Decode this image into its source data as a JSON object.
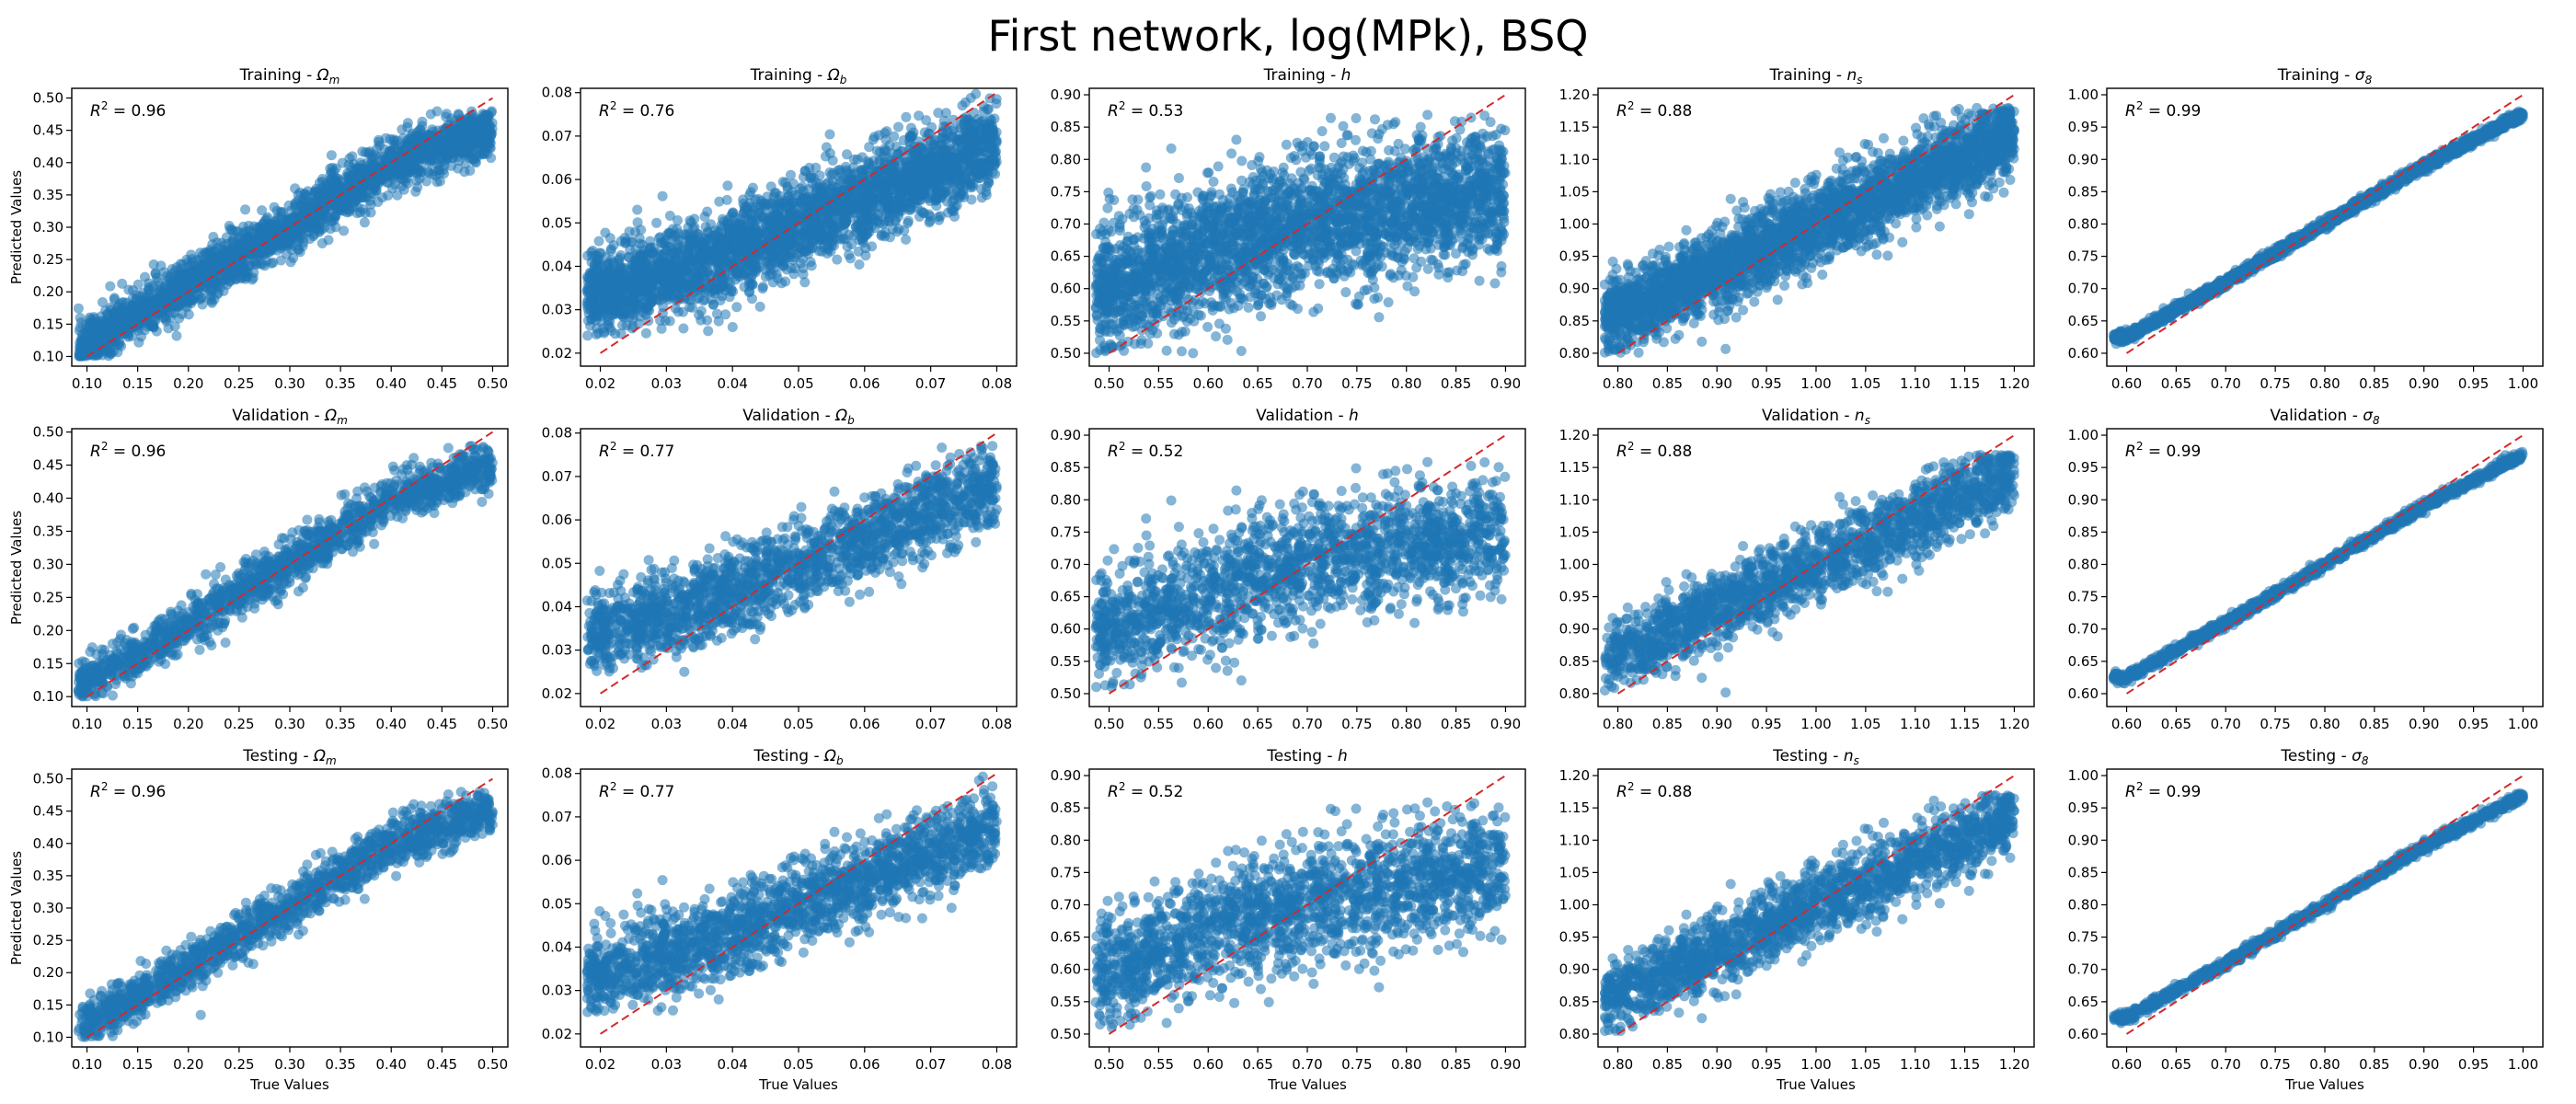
{
  "figure": {
    "title": "First network, log(MPk), BSQ"
  },
  "colors": {
    "points": "#1f77b4",
    "identity_line": "#d62728",
    "axes": "#000000",
    "background": "#ffffff"
  },
  "axis_labels": {
    "x": "True Values",
    "y": "Predicted Values"
  },
  "chart_data": [
    {
      "type": "scatter",
      "row": 0,
      "col": 0,
      "title_prefix": "Training - ",
      "param": "Ωm",
      "param_base": "Ω",
      "param_sub": "m",
      "r2_text": "= 0.96",
      "r2": 0.96,
      "xlim": [
        0.085,
        0.515
      ],
      "ylim": [
        0.085,
        0.515
      ],
      "xticks": [
        0.1,
        0.15,
        0.2,
        0.25,
        0.3,
        0.35,
        0.4,
        0.45,
        0.5
      ],
      "yticks": [
        0.1,
        0.15,
        0.2,
        0.25,
        0.3,
        0.35,
        0.4,
        0.45,
        0.5
      ],
      "trend": {
        "x": [
          0.1,
          0.2,
          0.3,
          0.4,
          0.5
        ],
        "y": [
          0.12,
          0.21,
          0.3,
          0.4,
          0.45
        ]
      },
      "spread": 0.02,
      "n_points": 2500,
      "y_clip": [
        0.1,
        0.48
      ]
    },
    {
      "type": "scatter",
      "row": 0,
      "col": 1,
      "title_prefix": "Training - ",
      "param": "Ωb",
      "param_base": "Ω",
      "param_sub": "b",
      "r2_text": "= 0.76",
      "r2": 0.76,
      "xlim": [
        0.017,
        0.083
      ],
      "ylim": [
        0.017,
        0.081
      ],
      "xticks": [
        0.02,
        0.03,
        0.04,
        0.05,
        0.06,
        0.07,
        0.08
      ],
      "yticks": [
        0.02,
        0.03,
        0.04,
        0.05,
        0.06,
        0.07,
        0.08
      ],
      "trend": {
        "x": [
          0.02,
          0.04,
          0.06,
          0.08
        ],
        "y": [
          0.034,
          0.043,
          0.056,
          0.068
        ]
      },
      "spread": 0.005,
      "n_points": 3000,
      "y_clip": [
        0.024,
        0.08
      ]
    },
    {
      "type": "scatter",
      "row": 0,
      "col": 2,
      "title_prefix": "Training - ",
      "param": "h",
      "param_base": "h",
      "param_sub": "",
      "r2_text": "= 0.53",
      "r2": 0.53,
      "xlim": [
        0.48,
        0.92
      ],
      "ylim": [
        0.48,
        0.91
      ],
      "xticks": [
        0.5,
        0.55,
        0.6,
        0.65,
        0.7,
        0.75,
        0.8,
        0.85,
        0.9
      ],
      "yticks": [
        0.5,
        0.55,
        0.6,
        0.65,
        0.7,
        0.75,
        0.8,
        0.85,
        0.9
      ],
      "trend": {
        "x": [
          0.5,
          0.6,
          0.7,
          0.8,
          0.9
        ],
        "y": [
          0.6,
          0.66,
          0.7,
          0.73,
          0.75
        ]
      },
      "spread": 0.05,
      "n_points": 3000,
      "y_clip": [
        0.5,
        0.87
      ]
    },
    {
      "type": "scatter",
      "row": 0,
      "col": 3,
      "title_prefix": "Training - ",
      "param": "ns",
      "param_base": "n",
      "param_sub": "s",
      "r2_text": "= 0.88",
      "r2": 0.88,
      "xlim": [
        0.78,
        1.22
      ],
      "ylim": [
        0.78,
        1.21
      ],
      "xticks": [
        0.8,
        0.85,
        0.9,
        0.95,
        1.0,
        1.05,
        1.1,
        1.15,
        1.2
      ],
      "yticks": [
        0.8,
        0.85,
        0.9,
        0.95,
        1.0,
        1.05,
        1.1,
        1.15,
        1.2
      ],
      "trend": {
        "x": [
          0.8,
          1.0,
          1.2
        ],
        "y": [
          0.86,
          1.0,
          1.14
        ]
      },
      "spread": 0.03,
      "n_points": 3000,
      "y_clip": [
        0.8,
        1.18
      ]
    },
    {
      "type": "scatter",
      "row": 0,
      "col": 4,
      "title_prefix": "Training - ",
      "param": "σ8",
      "param_base": "σ",
      "param_sub": "8",
      "r2_text": "= 0.99",
      "r2": 0.99,
      "xlim": [
        0.58,
        1.02
      ],
      "ylim": [
        0.58,
        1.01
      ],
      "xticks": [
        0.6,
        0.65,
        0.7,
        0.75,
        0.8,
        0.85,
        0.9,
        0.95,
        1.0
      ],
      "yticks": [
        0.6,
        0.65,
        0.7,
        0.75,
        0.8,
        0.85,
        0.9,
        0.95,
        1.0
      ],
      "trend": {
        "x": [
          0.6,
          0.7,
          0.8,
          0.9,
          1.0
        ],
        "y": [
          0.625,
          0.71,
          0.8,
          0.89,
          0.97
        ]
      },
      "spread": 0.004,
      "n_points": 2000,
      "y_clip": [
        0.61,
        0.975
      ]
    },
    {
      "type": "scatter",
      "row": 1,
      "col": 0,
      "title_prefix": "Validation - ",
      "param": "Ωm",
      "param_base": "Ω",
      "param_sub": "m",
      "r2_text": "= 0.96",
      "r2": 0.96,
      "xlim": [
        0.085,
        0.515
      ],
      "ylim": [
        0.085,
        0.505
      ],
      "xticks": [
        0.1,
        0.15,
        0.2,
        0.25,
        0.3,
        0.35,
        0.4,
        0.45,
        0.5
      ],
      "yticks": [
        0.1,
        0.15,
        0.2,
        0.25,
        0.3,
        0.35,
        0.4,
        0.45,
        0.5
      ],
      "trend": {
        "x": [
          0.1,
          0.2,
          0.3,
          0.4,
          0.5
        ],
        "y": [
          0.12,
          0.21,
          0.3,
          0.4,
          0.45
        ]
      },
      "spread": 0.018,
      "n_points": 1500,
      "y_clip": [
        0.1,
        0.48
      ]
    },
    {
      "type": "scatter",
      "row": 1,
      "col": 1,
      "title_prefix": "Validation - ",
      "param": "Ωb",
      "param_base": "Ω",
      "param_sub": "b",
      "r2_text": "= 0.77",
      "r2": 0.77,
      "xlim": [
        0.017,
        0.083
      ],
      "ylim": [
        0.017,
        0.081
      ],
      "xticks": [
        0.02,
        0.03,
        0.04,
        0.05,
        0.06,
        0.07,
        0.08
      ],
      "yticks": [
        0.02,
        0.03,
        0.04,
        0.05,
        0.06,
        0.07,
        0.08
      ],
      "trend": {
        "x": [
          0.02,
          0.04,
          0.06,
          0.08
        ],
        "y": [
          0.034,
          0.043,
          0.056,
          0.068
        ]
      },
      "spread": 0.0048,
      "n_points": 1800,
      "y_clip": [
        0.025,
        0.08
      ]
    },
    {
      "type": "scatter",
      "row": 1,
      "col": 2,
      "title_prefix": "Validation - ",
      "param": "h",
      "param_base": "h",
      "param_sub": "",
      "r2_text": "= 0.52",
      "r2": 0.52,
      "xlim": [
        0.48,
        0.92
      ],
      "ylim": [
        0.48,
        0.91
      ],
      "xticks": [
        0.5,
        0.55,
        0.6,
        0.65,
        0.7,
        0.75,
        0.8,
        0.85,
        0.9
      ],
      "yticks": [
        0.5,
        0.55,
        0.6,
        0.65,
        0.7,
        0.75,
        0.8,
        0.85,
        0.9
      ],
      "trend": {
        "x": [
          0.5,
          0.6,
          0.7,
          0.8,
          0.9
        ],
        "y": [
          0.6,
          0.66,
          0.7,
          0.73,
          0.75
        ]
      },
      "spread": 0.045,
      "n_points": 1800,
      "y_clip": [
        0.51,
        0.86
      ]
    },
    {
      "type": "scatter",
      "row": 1,
      "col": 3,
      "title_prefix": "Validation - ",
      "param": "ns",
      "param_base": "n",
      "param_sub": "s",
      "r2_text": "= 0.88",
      "r2": 0.88,
      "xlim": [
        0.78,
        1.22
      ],
      "ylim": [
        0.78,
        1.21
      ],
      "xticks": [
        0.8,
        0.85,
        0.9,
        0.95,
        1.0,
        1.05,
        1.1,
        1.15,
        1.2
      ],
      "yticks": [
        0.8,
        0.85,
        0.9,
        0.95,
        1.0,
        1.05,
        1.1,
        1.15,
        1.2
      ],
      "trend": {
        "x": [
          0.8,
          1.0,
          1.2
        ],
        "y": [
          0.86,
          1.0,
          1.14
        ]
      },
      "spread": 0.028,
      "n_points": 1800,
      "y_clip": [
        0.8,
        1.17
      ]
    },
    {
      "type": "scatter",
      "row": 1,
      "col": 4,
      "title_prefix": "Validation - ",
      "param": "σ8",
      "param_base": "σ",
      "param_sub": "8",
      "r2_text": "= 0.99",
      "r2": 0.99,
      "xlim": [
        0.58,
        1.02
      ],
      "ylim": [
        0.58,
        1.01
      ],
      "xticks": [
        0.6,
        0.65,
        0.7,
        0.75,
        0.8,
        0.85,
        0.9,
        0.95,
        1.0
      ],
      "yticks": [
        0.6,
        0.65,
        0.7,
        0.75,
        0.8,
        0.85,
        0.9,
        0.95,
        1.0
      ],
      "trend": {
        "x": [
          0.6,
          0.7,
          0.8,
          0.9,
          1.0
        ],
        "y": [
          0.625,
          0.71,
          0.8,
          0.89,
          0.97
        ]
      },
      "spread": 0.004,
      "n_points": 1200,
      "y_clip": [
        0.61,
        0.975
      ]
    },
    {
      "type": "scatter",
      "row": 2,
      "col": 0,
      "title_prefix": "Testing - ",
      "param": "Ωm",
      "param_base": "Ω",
      "param_sub": "m",
      "r2_text": "= 0.96",
      "r2": 0.96,
      "xlim": [
        0.085,
        0.515
      ],
      "ylim": [
        0.085,
        0.515
      ],
      "xticks": [
        0.1,
        0.15,
        0.2,
        0.25,
        0.3,
        0.35,
        0.4,
        0.45,
        0.5
      ],
      "yticks": [
        0.1,
        0.15,
        0.2,
        0.25,
        0.3,
        0.35,
        0.4,
        0.45,
        0.5
      ],
      "trend": {
        "x": [
          0.1,
          0.2,
          0.3,
          0.4,
          0.5
        ],
        "y": [
          0.12,
          0.21,
          0.3,
          0.4,
          0.45
        ]
      },
      "spread": 0.018,
      "n_points": 1500,
      "y_clip": [
        0.1,
        0.48
      ]
    },
    {
      "type": "scatter",
      "row": 2,
      "col": 1,
      "title_prefix": "Testing - ",
      "param": "Ωb",
      "param_base": "Ω",
      "param_sub": "b",
      "r2_text": "= 0.77",
      "r2": 0.77,
      "xlim": [
        0.017,
        0.083
      ],
      "ylim": [
        0.017,
        0.081
      ],
      "xticks": [
        0.02,
        0.03,
        0.04,
        0.05,
        0.06,
        0.07,
        0.08
      ],
      "yticks": [
        0.02,
        0.03,
        0.04,
        0.05,
        0.06,
        0.07,
        0.08
      ],
      "trend": {
        "x": [
          0.02,
          0.04,
          0.06,
          0.08
        ],
        "y": [
          0.034,
          0.043,
          0.056,
          0.068
        ]
      },
      "spread": 0.0048,
      "n_points": 1800,
      "y_clip": [
        0.025,
        0.08
      ]
    },
    {
      "type": "scatter",
      "row": 2,
      "col": 2,
      "title_prefix": "Testing - ",
      "param": "h",
      "param_base": "h",
      "param_sub": "",
      "r2_text": "= 0.52",
      "r2": 0.52,
      "xlim": [
        0.48,
        0.92
      ],
      "ylim": [
        0.48,
        0.91
      ],
      "xticks": [
        0.5,
        0.55,
        0.6,
        0.65,
        0.7,
        0.75,
        0.8,
        0.85,
        0.9
      ],
      "yticks": [
        0.5,
        0.55,
        0.6,
        0.65,
        0.7,
        0.75,
        0.8,
        0.85,
        0.9
      ],
      "trend": {
        "x": [
          0.5,
          0.6,
          0.7,
          0.8,
          0.9
        ],
        "y": [
          0.6,
          0.66,
          0.7,
          0.73,
          0.75
        ]
      },
      "spread": 0.045,
      "n_points": 1800,
      "y_clip": [
        0.51,
        0.86
      ]
    },
    {
      "type": "scatter",
      "row": 2,
      "col": 3,
      "title_prefix": "Testing - ",
      "param": "ns",
      "param_base": "n",
      "param_sub": "s",
      "r2_text": "= 0.88",
      "r2": 0.88,
      "xlim": [
        0.78,
        1.22
      ],
      "ylim": [
        0.78,
        1.21
      ],
      "xticks": [
        0.8,
        0.85,
        0.9,
        0.95,
        1.0,
        1.05,
        1.1,
        1.15,
        1.2
      ],
      "yticks": [
        0.8,
        0.85,
        0.9,
        0.95,
        1.0,
        1.05,
        1.1,
        1.15,
        1.2
      ],
      "trend": {
        "x": [
          0.8,
          1.0,
          1.2
        ],
        "y": [
          0.86,
          1.0,
          1.14
        ]
      },
      "spread": 0.028,
      "n_points": 1800,
      "y_clip": [
        0.8,
        1.17
      ]
    },
    {
      "type": "scatter",
      "row": 2,
      "col": 4,
      "title_prefix": "Testing - ",
      "param": "σ8",
      "param_base": "σ",
      "param_sub": "8",
      "r2_text": "= 0.99",
      "r2": 0.99,
      "xlim": [
        0.58,
        1.02
      ],
      "ylim": [
        0.58,
        1.01
      ],
      "xticks": [
        0.6,
        0.65,
        0.7,
        0.75,
        0.8,
        0.85,
        0.9,
        0.95,
        1.0
      ],
      "yticks": [
        0.6,
        0.65,
        0.7,
        0.75,
        0.8,
        0.85,
        0.9,
        0.95,
        1.0
      ],
      "trend": {
        "x": [
          0.6,
          0.7,
          0.8,
          0.9,
          1.0
        ],
        "y": [
          0.625,
          0.71,
          0.8,
          0.89,
          0.97
        ]
      },
      "spread": 0.004,
      "n_points": 1200,
      "y_clip": [
        0.61,
        0.975
      ]
    }
  ]
}
